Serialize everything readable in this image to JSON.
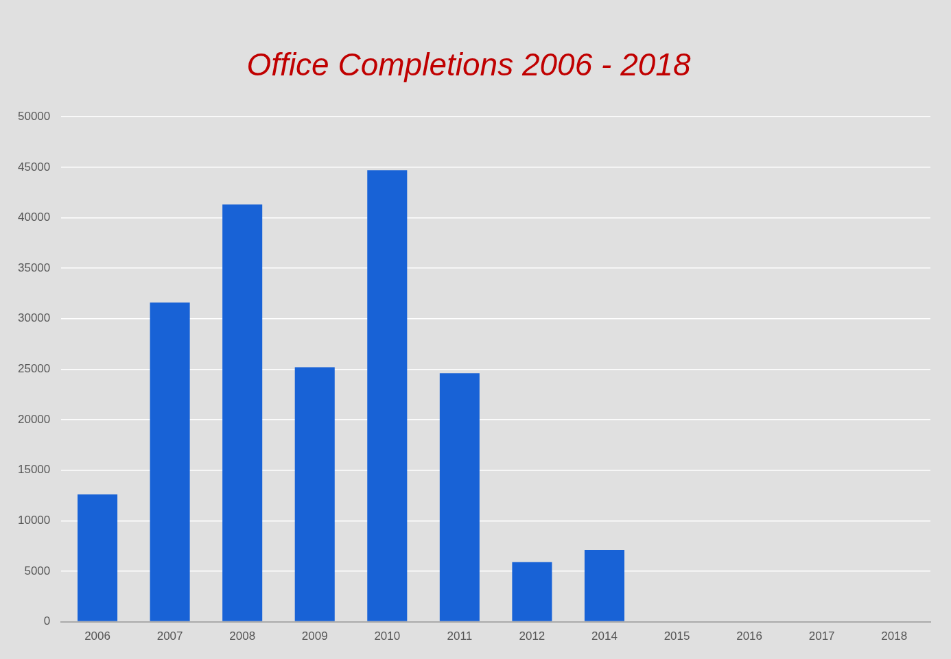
{
  "chart_data": {
    "type": "bar",
    "title": "Office Completions 2006 - 2018",
    "categories": [
      "2006",
      "2007",
      "2008",
      "2009",
      "2010",
      "2011",
      "2012",
      "2014",
      "2015",
      "2016",
      "2017",
      "2018"
    ],
    "values": [
      12600,
      31600,
      41300,
      25200,
      44700,
      24600,
      5900,
      7100,
      0,
      0,
      0,
      0
    ],
    "color": "#1862d6",
    "ylim": [
      0,
      50000
    ],
    "yticks": [
      0,
      5000,
      10000,
      15000,
      20000,
      25000,
      30000,
      35000,
      40000,
      45000,
      50000
    ],
    "grid": "y",
    "legend": false
  }
}
